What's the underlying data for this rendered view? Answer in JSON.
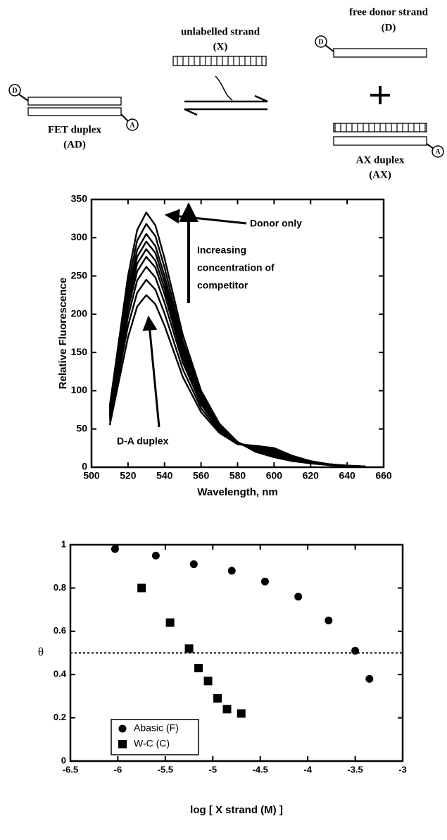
{
  "diagram": {
    "unlabelled": {
      "title": "unlabelled strand",
      "symbol": "(X)"
    },
    "free_donor": {
      "title": "free donor strand",
      "symbol": "(D)",
      "donor": "D"
    },
    "fet_duplex": {
      "title": "FET duplex",
      "symbol": "(AD)",
      "donor": "D",
      "acceptor": "A"
    },
    "ax_duplex": {
      "title": "AX duplex",
      "symbol": "(AX)",
      "acceptor": "A"
    }
  },
  "chart_data": [
    {
      "type": "line",
      "xlabel": "Wavelength, nm",
      "ylabel": "Relative Fluorescence",
      "annotations": [
        "Donor only",
        "Increasing",
        "concentration of",
        "competitor",
        "D-A duplex"
      ],
      "x": [
        510,
        520,
        525,
        530,
        535,
        540,
        550,
        560,
        570,
        580,
        590,
        600,
        610,
        620,
        630,
        640,
        650
      ],
      "series": [
        {
          "color": "#000000",
          "values": [
            80,
            250,
            310,
            333,
            316,
            273,
            173,
            100,
            57,
            33,
            20,
            13,
            8,
            5,
            3,
            1,
            1
          ]
        },
        {
          "color": "#000000",
          "values": [
            77,
            239,
            296,
            318,
            302,
            261,
            165,
            96,
            55,
            33,
            21,
            15,
            9,
            5,
            3,
            1,
            1
          ]
        },
        {
          "color": "#000000",
          "values": [
            74,
            229,
            284,
            305,
            289,
            250,
            159,
            93,
            54,
            32,
            22,
            16,
            10,
            6,
            3,
            1,
            1
          ]
        },
        {
          "color": "#000000",
          "values": [
            71,
            222,
            275,
            295,
            280,
            242,
            154,
            90,
            53,
            32,
            23,
            17,
            10,
            6,
            3,
            1,
            1
          ]
        },
        {
          "color": "#000000",
          "values": [
            69,
            214,
            266,
            285,
            270,
            234,
            149,
            88,
            52,
            32,
            24,
            18,
            11,
            6,
            3,
            1,
            1
          ]
        },
        {
          "color": "#000000",
          "values": [
            67,
            207,
            256,
            275,
            261,
            226,
            143,
            85,
            51,
            31,
            24,
            19,
            12,
            7,
            4,
            2,
            1
          ]
        },
        {
          "color": "#000000",
          "values": [
            64,
            197,
            244,
            262,
            248,
            215,
            137,
            82,
            49,
            31,
            25,
            21,
            13,
            7,
            4,
            2,
            1
          ]
        },
        {
          "color": "#000000",
          "values": [
            60,
            185,
            228,
            245,
            232,
            201,
            128,
            77,
            47,
            31,
            27,
            23,
            14,
            7,
            4,
            2,
            1
          ]
        },
        {
          "color": "#000000",
          "values": [
            55,
            170,
            210,
            225,
            213,
            185,
            118,
            72,
            45,
            30,
            28,
            25,
            15,
            8,
            4,
            2,
            1
          ]
        }
      ],
      "xlim": [
        500,
        660
      ],
      "xticks": [
        500,
        520,
        540,
        560,
        580,
        600,
        620,
        640,
        660
      ],
      "ylim": [
        0,
        350
      ],
      "yticks": [
        0,
        50,
        100,
        150,
        200,
        250,
        300,
        350
      ],
      "grid": false
    },
    {
      "type": "scatter",
      "xlabel": "log [ X strand (M) ]",
      "ylabel": "θ",
      "series": [
        {
          "name": "Abasic (F)",
          "marker": "circle",
          "color": "#000000",
          "x": [
            -6.03,
            -5.6,
            -5.2,
            -4.8,
            -4.45,
            -4.1,
            -3.78,
            -3.5,
            -3.35
          ],
          "values": [
            0.98,
            0.95,
            0.91,
            0.88,
            0.83,
            0.76,
            0.65,
            0.51,
            0.38
          ]
        },
        {
          "name": "W-C (C)",
          "marker": "square",
          "color": "#000000",
          "x": [
            -5.75,
            -5.45,
            -5.25,
            -5.15,
            -5.05,
            -4.95,
            -4.85,
            -4.7
          ],
          "values": [
            0.8,
            0.64,
            0.52,
            0.43,
            0.37,
            0.29,
            0.24,
            0.22
          ]
        }
      ],
      "hline": 0.5,
      "xlim": [
        -6.5,
        -3
      ],
      "xticks": [
        -6.5,
        -6,
        -5.5,
        -5,
        -4.5,
        -4,
        -3.5,
        -3
      ],
      "ylim": [
        0,
        1
      ],
      "yticks": [
        0,
        0.2,
        0.4,
        0.6,
        0.8,
        1
      ],
      "legend": "lower left",
      "grid": false
    }
  ]
}
